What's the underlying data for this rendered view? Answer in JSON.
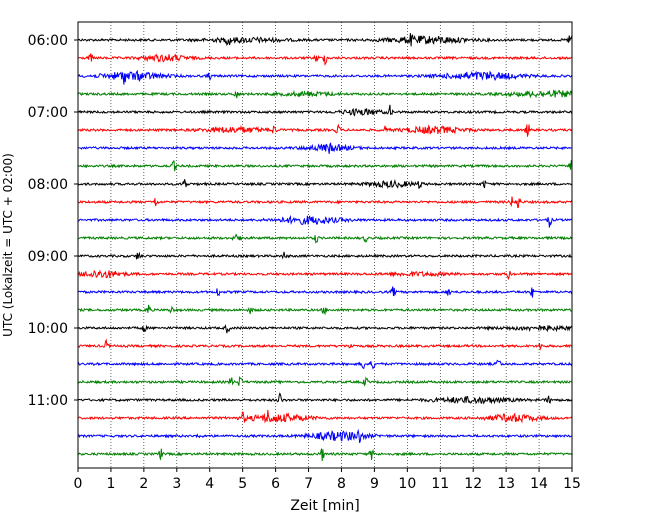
{
  "chart_data": {
    "type": "line",
    "title": "",
    "xlabel": "Zeit  [min]",
    "ylabel": "UTC (Lokalzeit = UTC + 02:00)",
    "xlim": [
      0,
      15
    ],
    "x_ticks": [
      0,
      1,
      2,
      3,
      4,
      5,
      6,
      7,
      8,
      9,
      10,
      11,
      12,
      13,
      14,
      15
    ],
    "x_tick_labels": [
      "0",
      "1",
      "2",
      "3",
      "4",
      "5",
      "6",
      "7",
      "8",
      "9",
      "10",
      "11",
      "12",
      "13",
      "14",
      "15"
    ],
    "y_tick_labels": [
      "06:00",
      "07:00",
      "08:00",
      "09:00",
      "10:00",
      "11:00"
    ],
    "vertical_grid": "dotted",
    "trace_interval_min": 15,
    "trace_start": "06:00",
    "trace_end": "11:45",
    "trace_count": 24,
    "trace_colors": [
      "#000000",
      "#ff0000",
      "#0000ff",
      "#008000"
    ],
    "legend": "none"
  }
}
